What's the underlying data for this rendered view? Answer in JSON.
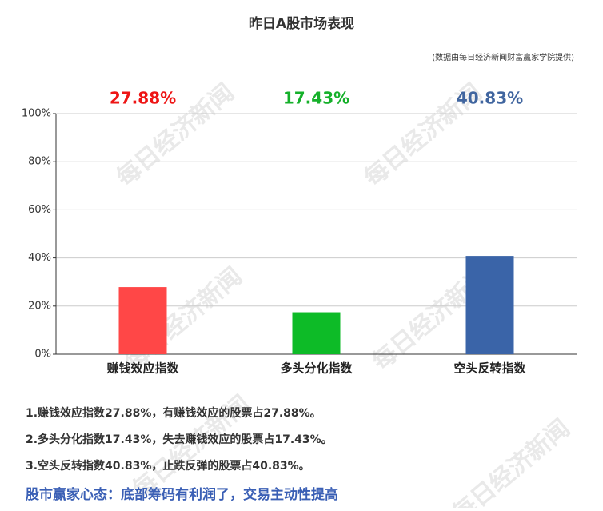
{
  "chart_data": {
    "type": "bar",
    "title": "昨日A股市场表现",
    "subtitle": "(数据由每日经济新闻财富赢家学院提供)",
    "categories": [
      "赚钱效应指数",
      "多头分化指数",
      "空头反转指数"
    ],
    "values": [
      27.88,
      17.43,
      40.83
    ],
    "value_labels": [
      "27.88%",
      "17.43%",
      "40.83%"
    ],
    "colors": [
      "#ff4747",
      "#0dbb27",
      "#3a64a8"
    ],
    "label_colors": [
      "#ee1515",
      "#15b02a",
      "#40659f"
    ],
    "ylim": [
      0,
      100
    ],
    "yticks": [
      {
        "value": 0,
        "label": "0%"
      },
      {
        "value": 20,
        "label": "20%"
      },
      {
        "value": 40,
        "label": "40%"
      },
      {
        "value": 60,
        "label": "60%"
      },
      {
        "value": 80,
        "label": "80%"
      },
      {
        "value": 100,
        "label": "100%"
      }
    ],
    "grid": true
  },
  "notes": [
    "1.赚钱效应指数27.88%，有赚钱效应的股票占27.88%。",
    "2.多头分化指数17.43%，失去赚钱效应的股票占17.43%。",
    "3.空头反转指数40.83%，止跌反弹的股票占40.83%。"
  ],
  "headline": "股市赢家心态：底部筹码有利润了，交易主动性提高",
  "watermark": "每日经济新闻"
}
